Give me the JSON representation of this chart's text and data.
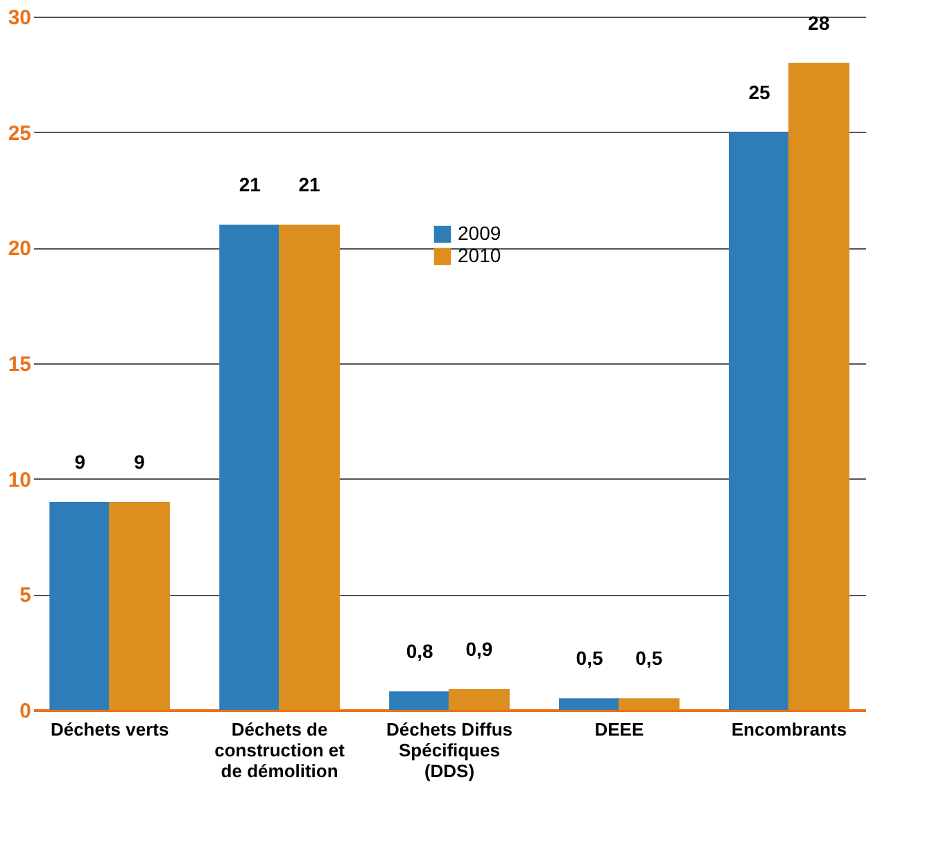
{
  "chart_data": {
    "type": "bar",
    "categories": [
      "Déchets verts",
      "Déchets de construction et de démolition",
      "Déchets Diffus Spécifiques (DDS)",
      "DEEE",
      "Encombrants"
    ],
    "series": [
      {
        "name": "2009",
        "color": "#2f7db8",
        "values": [
          9,
          21,
          0.8,
          0.5,
          25
        ],
        "value_labels": [
          "9",
          "21",
          "0,8",
          "0,5",
          "25"
        ]
      },
      {
        "name": "2010",
        "color": "#dc8f1e",
        "values": [
          9,
          21,
          0.9,
          0.5,
          28
        ],
        "value_labels": [
          "9",
          "21",
          "0,9",
          "0,5",
          "28"
        ]
      }
    ],
    "ylim": [
      0,
      30
    ],
    "yticks": [
      0,
      5,
      10,
      15,
      20,
      25,
      30
    ],
    "grid": "y",
    "legend": "top"
  }
}
